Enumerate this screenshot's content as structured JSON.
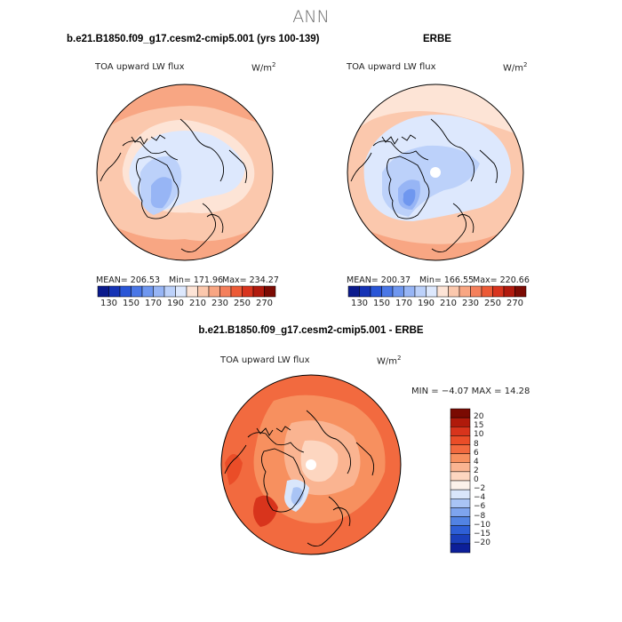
{
  "page": {
    "title": "ANN"
  },
  "panels": [
    {
      "case": "b.e21.B1850.f09_g17.cesm2-cmip5.001 (yrs 100-139)",
      "variable": "TOA upward LW flux",
      "units": "W/m",
      "units_exp": "2",
      "mean_label": "MEAN= 206.53",
      "min_label": "Min= 171.96",
      "max_label": "Max= 234.27"
    },
    {
      "case": "ERBE",
      "variable": "TOA upward LW flux",
      "units": "W/m",
      "units_exp": "2",
      "mean_label": "MEAN= 200.37",
      "min_label": "Min= 166.55",
      "max_label": "Max= 220.66"
    }
  ],
  "difference": {
    "case": "b.e21.B1850.f09_g17.cesm2-cmip5.001 - ERBE",
    "variable": "TOA upward LW flux",
    "units": "W/m",
    "units_exp": "2",
    "min_label": "MIN =",
    "min_value": "−4.07",
    "max_label": "MAX =",
    "max_value": "14.28"
  },
  "chart_data": [
    {
      "type": "heatmap",
      "projection": "north-polar-stereographic",
      "title": "b.e21.B1850.f09_g17.cesm2-cmip5.001 (yrs 100-139)",
      "variable": "TOA upward LW flux",
      "units": "W/m^2",
      "mean": 206.53,
      "min": 171.96,
      "max": 234.27,
      "colorbar_ticks": [
        "130",
        "150",
        "170",
        "190",
        "210",
        "230",
        "250",
        "270"
      ],
      "colorbar_colors": [
        "#0a1a8c",
        "#1533b5",
        "#2a56d6",
        "#4a77e6",
        "#6f97ef",
        "#97b5f5",
        "#bcd1fa",
        "#dde8fd",
        "#fde4d6",
        "#fbc8ad",
        "#f8a683",
        "#f4805c",
        "#ec5a36",
        "#d8341e",
        "#b11a0e",
        "#7c0b04"
      ]
    },
    {
      "type": "heatmap",
      "projection": "north-polar-stereographic",
      "title": "ERBE",
      "variable": "TOA upward LW flux",
      "units": "W/m^2",
      "mean": 200.37,
      "min": 166.55,
      "max": 220.66,
      "colorbar_ticks": [
        "130",
        "150",
        "170",
        "190",
        "210",
        "230",
        "250",
        "270"
      ],
      "colorbar_colors": [
        "#0a1a8c",
        "#1533b5",
        "#2a56d6",
        "#4a77e6",
        "#6f97ef",
        "#97b5f5",
        "#bcd1fa",
        "#dde8fd",
        "#fde4d6",
        "#fbc8ad",
        "#f8a683",
        "#f4805c",
        "#ec5a36",
        "#d8341e",
        "#b11a0e",
        "#7c0b04"
      ]
    },
    {
      "type": "heatmap",
      "projection": "north-polar-stereographic",
      "title": "b.e21.B1850.f09_g17.cesm2-cmip5.001 - ERBE",
      "variable": "TOA upward LW flux",
      "units": "W/m^2",
      "min": -4.07,
      "max": 14.28,
      "colorbar_ticks": [
        "20",
        "15",
        "10",
        "8",
        "6",
        "4",
        "2",
        "0",
        "−2",
        "−4",
        "−6",
        "−8",
        "−10",
        "−15",
        "−20"
      ],
      "colorbar_colors": [
        "#7a0a02",
        "#b01a0b",
        "#d8341c",
        "#ea4d28",
        "#f26a3f",
        "#f7905f",
        "#fab491",
        "#fdd6c0",
        "#fbf1ea",
        "#d9e6fb",
        "#a9c4f5",
        "#7ea4ee",
        "#5283e3",
        "#2e5fd6",
        "#1a3fbb",
        "#0c1f99"
      ]
    }
  ]
}
